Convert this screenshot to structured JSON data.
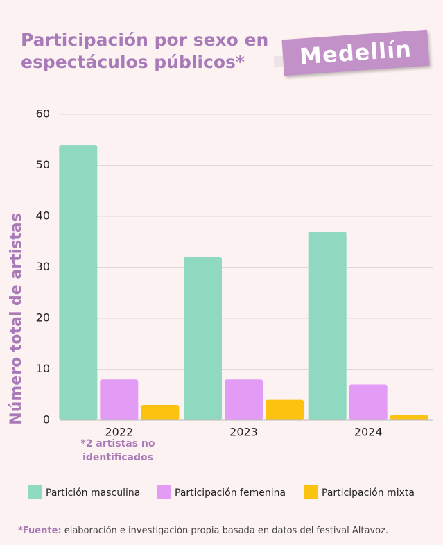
{
  "chart_data": {
    "type": "bar",
    "title": "Participación por sexo en espectáculos públicos*",
    "badge": "Medellín",
    "ylabel": "Número total de artistas",
    "categories": [
      "2022",
      "2023",
      "2024"
    ],
    "series": [
      {
        "name": "Partición masculina",
        "color": "#8fd9c1",
        "values": [
          54,
          32,
          37
        ]
      },
      {
        "name": "Participación femenina",
        "color": "#e39cf5",
        "values": [
          8,
          8,
          7
        ]
      },
      {
        "name": "Participación mixta",
        "color": "#fbc20f",
        "values": [
          3,
          4,
          1
        ]
      }
    ],
    "ylim": [
      0,
      60
    ],
    "yticks": [
      0,
      10,
      20,
      30,
      40,
      50,
      60
    ],
    "grid": true,
    "annotation": "*2 artistas no identificados",
    "footnote_label": "*Fuente:",
    "footnote_text": " elaboración e investigación propia basada en datos del festival Altavoz."
  }
}
